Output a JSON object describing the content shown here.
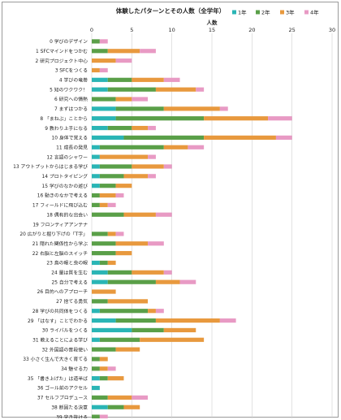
{
  "chart_data": {
    "type": "bar",
    "stacked": true,
    "orientation": "horizontal",
    "title": "体験したパターンとその人数（全学年）",
    "xlabel": "人数",
    "xlim": [
      0,
      30
    ],
    "xticks": [
      0,
      5,
      10,
      15,
      20,
      25,
      30
    ],
    "grid": true,
    "legend_position": "top-right",
    "colors": [
      "#2ab5b5",
      "#5a9f48",
      "#e8993e",
      "#e89ac4"
    ],
    "categories": [
      "0 学びのデザイン",
      "1 SFCマインドをつかむ",
      "2 研究プロジェクト中心",
      "3 SFCをつくる",
      "4 学びの竜巻",
      "5 知のワクワク！",
      "6 研究への情熱",
      "7 まずはつかる",
      "8 「まねぶ」ことから",
      "9 教わり上手になる",
      "10 身体で覚える",
      "11 成長の発見",
      "12 言語のシャワー",
      "13 アウトプットからはじまる学び",
      "14 プロトタイピング",
      "15 学びのなかの遊び",
      "16 動きのなかで考える",
      "17 フィールドに飛び込む",
      "18 偶有的な出会い",
      "19 フロンティアアンテナ",
      "20 広がりと掘り下げの「T字」",
      "21 隠れた関係性から学ぶ",
      "22 右脳と左脳のスイッチ",
      "23 鳥の眼と虫の眼",
      "24 量は質を生む",
      "25 自分で考える",
      "26 目的へのアプローチ",
      "27 捨てる勇気",
      "28 学びの共同体をつくる",
      "29 「はなす」ことでわかる",
      "30 ライバルをつくる",
      "31 教えることによる学び",
      "32 外国語の普段使い",
      "33 小さく生んで大きく育てる",
      "34 魅せる力",
      "35 「書き上げた」は道半ば",
      "36 ゴール前のアクセル",
      "37 セルフプロデュース",
      "38 断固たる決意",
      "39 突き抜ける"
    ],
    "series": [
      {
        "name": "1年",
        "values": [
          0,
          0,
          0,
          0,
          2,
          2,
          0,
          3,
          3,
          2,
          4,
          1,
          1,
          1,
          1,
          1,
          0,
          0,
          0,
          0,
          0,
          0,
          0,
          1,
          2,
          2,
          0,
          0,
          1,
          3,
          5,
          1,
          0,
          0,
          0,
          1,
          1,
          0,
          2,
          0
        ]
      },
      {
        "name": "2年",
        "values": [
          1,
          2,
          0,
          0,
          3,
          6,
          3,
          6,
          11,
          3,
          10,
          8,
          0,
          4,
          3,
          2,
          1,
          1,
          4,
          0,
          2,
          3,
          3,
          1,
          3,
          6,
          0,
          2,
          6,
          5,
          4,
          5,
          3,
          1,
          1,
          1,
          0,
          2,
          2,
          1
        ]
      },
      {
        "name": "3年",
        "values": [
          0,
          4,
          3,
          1,
          4,
          5,
          2,
          7,
          8,
          2,
          9,
          3,
          6,
          4,
          3,
          2,
          2,
          1,
          4,
          0,
          1,
          4,
          2,
          1,
          4,
          3,
          3,
          5,
          1,
          8,
          4,
          8,
          3,
          1,
          1,
          2,
          0,
          3,
          2,
          0
        ]
      },
      {
        "name": "4年",
        "values": [
          1,
          2,
          2,
          1,
          2,
          1,
          2,
          1,
          3,
          1,
          2,
          2,
          1,
          1,
          1,
          0,
          1,
          1,
          2,
          0,
          1,
          2,
          0,
          0,
          1,
          2,
          0,
          0,
          1,
          2,
          0,
          0,
          0,
          0,
          1,
          0,
          0,
          2,
          0,
          1
        ]
      }
    ]
  }
}
